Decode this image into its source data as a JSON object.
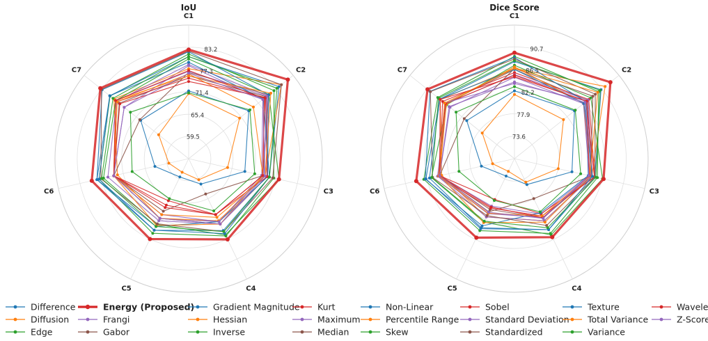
{
  "chart_data": [
    {
      "type": "radar",
      "title": "IoU",
      "axes": [
        "C1",
        "C2",
        "C3",
        "C4",
        "C5",
        "C6",
        "C7"
      ],
      "ticks": [
        59.5,
        65.4,
        71.4,
        77.3,
        83.2
      ],
      "range": [
        53.6,
        89.1
      ],
      "grid": true,
      "series": [
        {
          "name": "Difference",
          "values": [
            71.6,
            74.0,
            68.9,
            61.1,
            59.0,
            62.8,
            69.9
          ]
        },
        {
          "name": "Energy (Proposed)",
          "values": [
            82.6,
            87.3,
            78.2,
            77.4,
            77.3,
            80.0,
            83.6
          ]
        },
        {
          "name": "Diffusion",
          "values": [
            70.9,
            70.9,
            64.2,
            59.8,
            57.6,
            59.0,
            63.8
          ]
        },
        {
          "name": "Frangi",
          "values": [
            78.3,
            78.8,
            73.5,
            72.2,
            71.2,
            74.0,
            75.5
          ]
        },
        {
          "name": "Edge",
          "values": [
            81.4,
            82.6,
            76.8,
            76.4,
            75.6,
            78.0,
            80.3
          ]
        },
        {
          "name": "Gabor",
          "values": [
            75.6,
            80.0,
            75.0,
            72.9,
            71.2,
            74.0,
            77.2
          ]
        },
        {
          "name": "Gradient Magnitude",
          "values": [
            80.7,
            84.3,
            75.6,
            74.8,
            74.7,
            78.6,
            80.4
          ]
        },
        {
          "name": "Hessian",
          "values": [
            77.5,
            85.1,
            74.4,
            71.9,
            71.2,
            73.0,
            79.0
          ]
        },
        {
          "name": "Inverse",
          "values": [
            80.1,
            80.9,
            78.2,
            76.1,
            73.0,
            76.8,
            78.4
          ]
        },
        {
          "name": "Kurt",
          "values": [
            75.0,
            79.5,
            73.8,
            70.1,
            66.0,
            74.0,
            77.9
          ]
        },
        {
          "name": "Maximum",
          "values": [
            78.6,
            80.4,
            74.9,
            72.9,
            71.9,
            75.6,
            78.1
          ]
        },
        {
          "name": "Median",
          "values": [
            76.5,
            80.8,
            73.8,
            64.0,
            69.1,
            74.0,
            70.2
          ]
        },
        {
          "name": "Non-Linear",
          "values": [
            82.0,
            80.8,
            75.1,
            72.2,
            73.6,
            78.6,
            83.0
          ]
        },
        {
          "name": "Percentile Range",
          "values": [
            76.1,
            75.6,
            73.8,
            72.9,
            73.3,
            74.0,
            77.9
          ]
        },
        {
          "name": "Skew",
          "values": [
            71.1,
            74.4,
            71.6,
            69.0,
            65.4,
            69.0,
            73.4
          ]
        },
        {
          "name": "Sobel",
          "values": [
            74.1,
            79.7,
            75.0,
            70.1,
            67.3,
            74.0,
            77.0
          ]
        },
        {
          "name": "Standard Deviation",
          "values": [
            76.8,
            80.2,
            74.1,
            72.2,
            70.1,
            74.0,
            78.4
          ]
        },
        {
          "name": "Standardized",
          "values": [
            82.2,
            85.1,
            76.5,
            75.1,
            72.8,
            77.5,
            83.2
          ]
        },
        {
          "name": "Texture",
          "values": [
            79.2,
            79.0,
            75.6,
            75.7,
            74.7,
            78.0,
            80.4
          ]
        },
        {
          "name": "Total Variance",
          "values": [
            75.6,
            81.5,
            74.4,
            70.9,
            70.1,
            74.0,
            78.4
          ]
        },
        {
          "name": "Variance",
          "values": [
            80.7,
            83.6,
            75.6,
            75.1,
            73.6,
            77.3,
            79.3
          ]
        },
        {
          "name": "Wavelet",
          "values": [
            77.0,
            79.3,
            73.8,
            70.1,
            68.0,
            74.0,
            78.4
          ]
        },
        {
          "name": "Z-Score",
          "values": [
            76.3,
            78.8,
            74.4,
            72.9,
            71.2,
            74.0,
            75.5
          ]
        }
      ]
    },
    {
      "type": "radar",
      "title": "Dice Score",
      "axes": [
        "C1",
        "C2",
        "C3",
        "C4",
        "C5",
        "C6",
        "C7"
      ],
      "ticks": [
        73.6,
        77.9,
        82.2,
        86.5,
        90.7
      ],
      "range": [
        69.3,
        94.9
      ],
      "grid": true,
      "series": [
        {
          "name": "Difference",
          "values": [
            82.3,
            84.0,
            80.6,
            74.8,
            73.0,
            75.8,
            81.0
          ]
        },
        {
          "name": "Energy (Proposed)",
          "values": [
            89.6,
            92.8,
            86.8,
            86.0,
            86.1,
            88.6,
            90.6
          ]
        },
        {
          "name": "Diffusion",
          "values": [
            81.6,
            81.3,
            77.9,
            74.3,
            72.0,
            73.6,
            77.2
          ]
        },
        {
          "name": "Frangi",
          "values": [
            84.9,
            86.2,
            84.0,
            81.1,
            79.4,
            84.0,
            85.1
          ]
        },
        {
          "name": "Edge",
          "values": [
            88.9,
            89.9,
            85.6,
            85.2,
            84.6,
            87.1,
            88.1
          ]
        },
        {
          "name": "Gabor",
          "values": [
            86.4,
            87.2,
            84.5,
            81.9,
            80.1,
            84.0,
            86.2
          ]
        },
        {
          "name": "Gradient Magnitude",
          "values": [
            87.9,
            90.5,
            85.1,
            84.4,
            84.2,
            86.7,
            87.6
          ]
        },
        {
          "name": "Hessian",
          "values": [
            86.6,
            91.5,
            84.5,
            82.5,
            81.7,
            83.6,
            87.5
          ]
        },
        {
          "name": "Inverse",
          "values": [
            87.2,
            88.0,
            86.6,
            85.5,
            82.8,
            85.6,
            85.9
          ]
        },
        {
          "name": "Kurt",
          "values": [
            85.8,
            87.5,
            85.1,
            81.0,
            78.0,
            84.0,
            86.9
          ]
        },
        {
          "name": "Maximum",
          "values": [
            85.4,
            87.3,
            84.6,
            82.5,
            81.7,
            84.4,
            86.1
          ]
        },
        {
          "name": "Median",
          "values": [
            86.6,
            88.5,
            84.3,
            77.8,
            80.6,
            84.0,
            81.6
          ]
        },
        {
          "name": "Non-Linear",
          "values": [
            88.7,
            86.8,
            83.8,
            80.8,
            83.6,
            86.8,
            90.0
          ]
        },
        {
          "name": "Percentile Range",
          "values": [
            86.9,
            86.3,
            84.2,
            82.8,
            82.9,
            84.0,
            86.0
          ]
        },
        {
          "name": "Skew",
          "values": [
            83.1,
            84.2,
            82.3,
            80.6,
            78.2,
            80.2,
            83.6
          ]
        },
        {
          "name": "Sobel",
          "values": [
            85.3,
            86.9,
            85.0,
            81.5,
            79.8,
            84.3,
            86.2
          ]
        },
        {
          "name": "Standard Deviation",
          "values": [
            83.7,
            87.0,
            84.3,
            81.8,
            81.0,
            84.3,
            86.4
          ]
        },
        {
          "name": "Standardized",
          "values": [
            88.4,
            89.1,
            85.1,
            83.5,
            81.4,
            85.4,
            89.9
          ]
        },
        {
          "name": "Texture",
          "values": [
            86.4,
            86.3,
            84.6,
            84.4,
            84.0,
            86.0,
            87.6
          ]
        },
        {
          "name": "Total Variance",
          "values": [
            86.6,
            89.7,
            84.1,
            81.5,
            80.9,
            84.2,
            86.4
          ]
        },
        {
          "name": "Variance",
          "values": [
            88.1,
            90.3,
            85.3,
            84.0,
            82.6,
            85.5,
            87.9
          ]
        },
        {
          "name": "Wavelet",
          "values": [
            85.0,
            87.0,
            84.0,
            81.9,
            79.6,
            84.0,
            87.5
          ]
        },
        {
          "name": "Z-Score",
          "values": [
            84.0,
            86.6,
            83.9,
            82.0,
            80.7,
            84.0,
            85.3
          ]
        }
      ]
    }
  ],
  "colors": {
    "Difference": "#1f77b4",
    "Energy (Proposed)": "#d62728",
    "Diffusion": "#ff7f0e",
    "Frangi": "#9467bd",
    "Edge": "#2ca02c",
    "Gabor": "#8c564b",
    "Gradient Magnitude": "#1f77b4",
    "Hessian": "#ff7f0e",
    "Inverse": "#2ca02c",
    "Kurt": "#d62728",
    "Maximum": "#9467bd",
    "Median": "#8c564b",
    "Non-Linear": "#1f77b4",
    "Percentile Range": "#ff7f0e",
    "Skew": "#2ca02c",
    "Sobel": "#d62728",
    "Standard Deviation": "#9467bd",
    "Standardized": "#8c564b",
    "Texture": "#1f77b4",
    "Total Variance": "#ff7f0e",
    "Variance": "#2ca02c",
    "Wavelet": "#d62728",
    "Z-Score": "#9467bd"
  },
  "legend": {
    "placement": "bottom",
    "highlight": "Energy (Proposed)",
    "columns": [
      [
        "Difference",
        "Diffusion",
        "Edge"
      ],
      [
        "Energy (Proposed)",
        "Frangi",
        "Gabor"
      ],
      [
        "Gradient Magnitude",
        "Hessian",
        "Inverse"
      ],
      [
        "Kurt",
        "Maximum",
        "Median"
      ],
      [
        "Non-Linear",
        "Percentile Range",
        "Skew"
      ],
      [
        "Sobel",
        "Standard Deviation",
        "Standardized"
      ],
      [
        "Texture",
        "Total Variance",
        "Variance"
      ],
      [
        "Wavelet",
        "Z-Score"
      ]
    ]
  }
}
